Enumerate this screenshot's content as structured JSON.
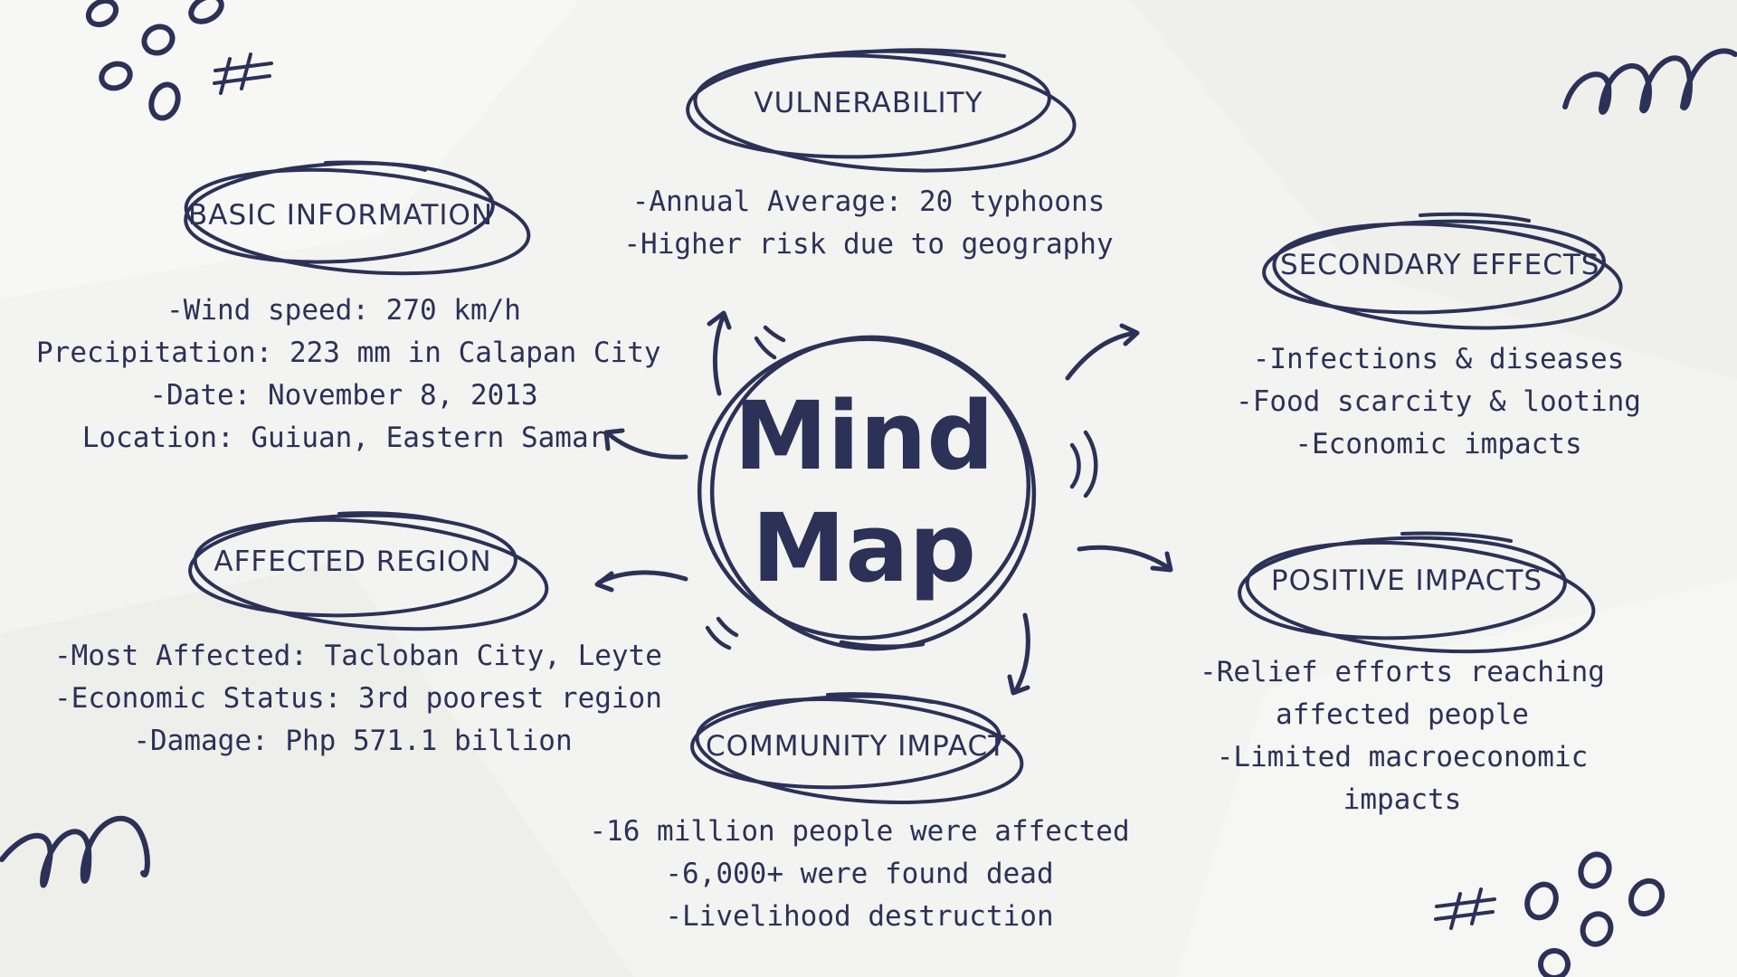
{
  "center": {
    "line1": "Mind",
    "line2": "Map"
  },
  "nodes": {
    "vulnerability": {
      "title": "VULNERABILITY",
      "items": [
        "-Annual Average: 20 typhoons",
        "-Higher risk due to geography"
      ]
    },
    "basic_information": {
      "title": "BASIC INFORMATION",
      "items": [
        "-Wind speed: 270 km/h",
        "Precipitation: 223 mm in Calapan City",
        "-Date: November 8, 2013",
        "Location: Guiuan, Eastern Samar"
      ]
    },
    "secondary_effects": {
      "title": "SECONDARY EFFECTS",
      "items": [
        "-Infections & diseases",
        "-Food scarcity & looting",
        "-Economic impacts"
      ]
    },
    "affected_region": {
      "title": "AFFECTED REGION",
      "items": [
        "-Most Affected: Tacloban City, Leyte",
        "-Economic Status: 3rd poorest region",
        "-Damage: Php 571.1 billion"
      ]
    },
    "positive_impacts": {
      "title": "POSITIVE IMPACTS",
      "items": [
        "-Relief efforts reaching",
        "affected people",
        "-Limited macroeconomic",
        "impacts"
      ]
    },
    "community_impact": {
      "title": "COMMUNITY IMPACT",
      "items": [
        "-16 million people were affected",
        "-6,000+ were found dead",
        "-Livelihood destruction"
      ]
    }
  },
  "colors": {
    "ink": "#2b3157",
    "background": "#f3f3f1"
  }
}
